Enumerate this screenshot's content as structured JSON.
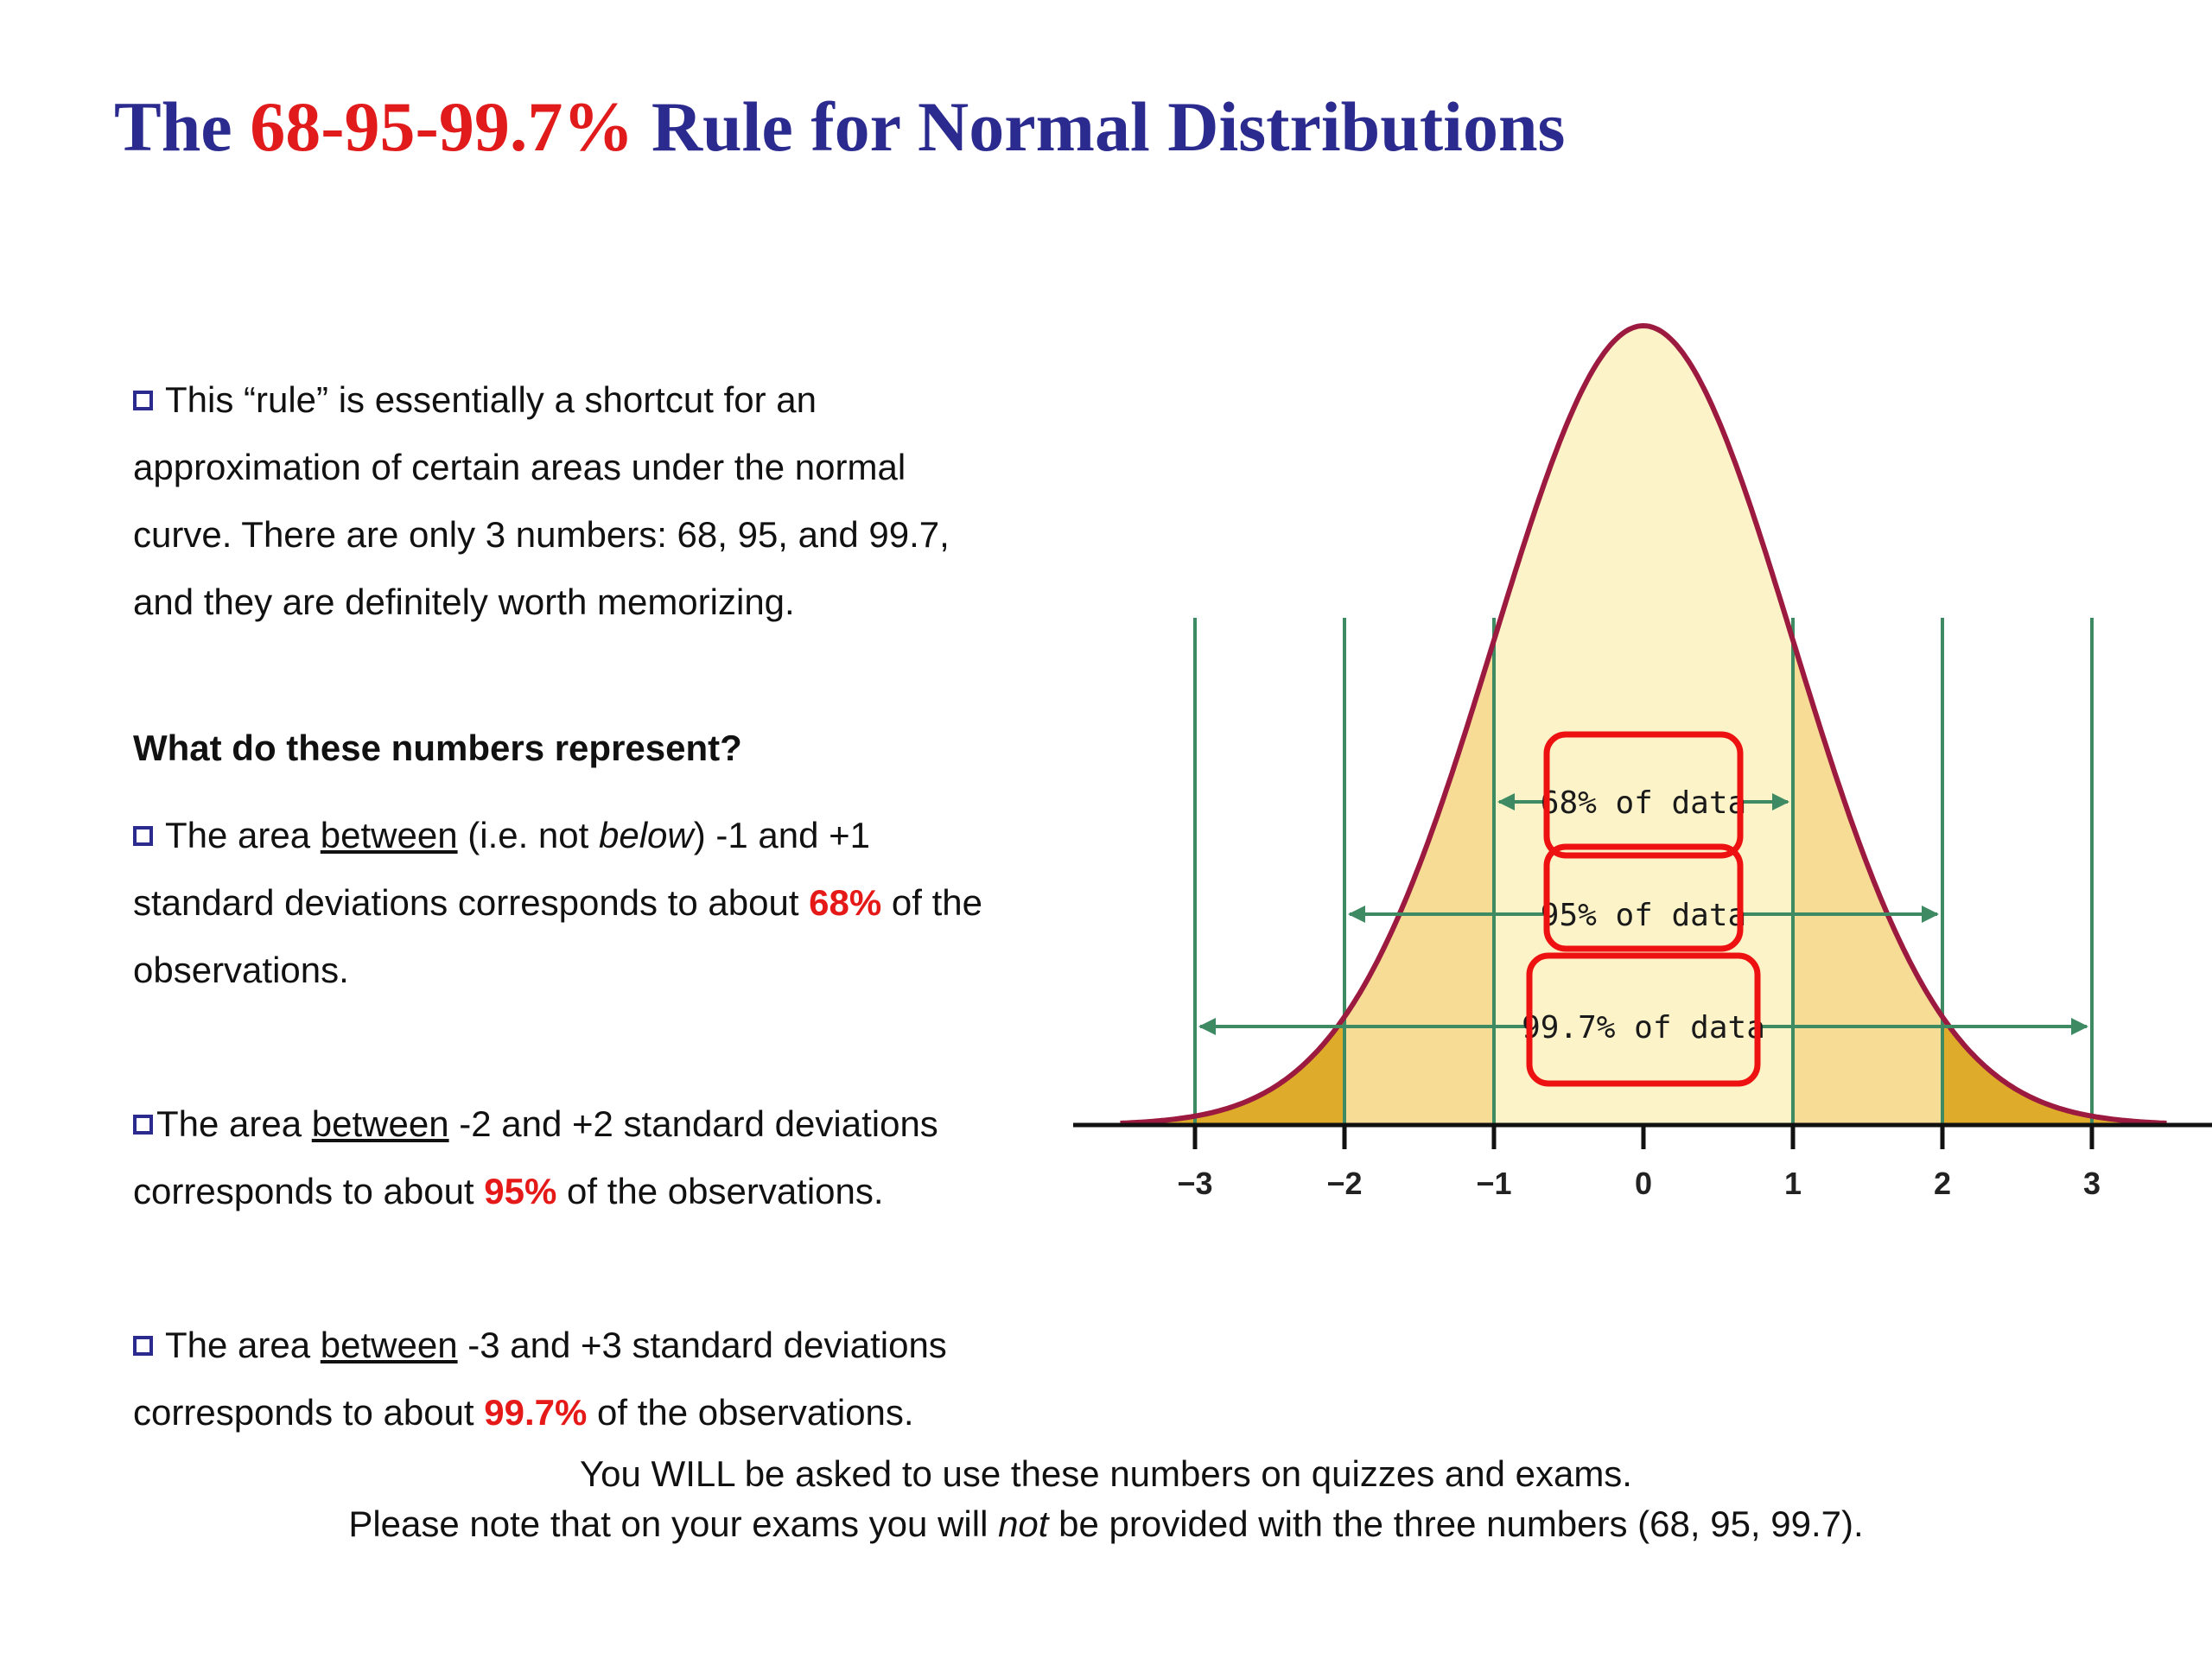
{
  "slide": {
    "title": {
      "part1": "The ",
      "highlight": "68-95-99.7%",
      "part2": " Rule for Normal Distributions"
    },
    "intro": {
      "lines": [
        "This “rule” is essentially a shortcut for an",
        "approximation of certain areas under the normal",
        "curve. There are only 3 numbers: 68, 95, and 99.7,",
        "and they are definitely worth memorizing."
      ]
    },
    "question": "What do these numbers represent?",
    "p1": {
      "pre": "The area ",
      "under": "between",
      "mid": " (i.e. not ",
      "italic": "below",
      "post": ") -1 and +1",
      "line2_pre": "standard deviations corresponds to about ",
      "value": "68%",
      "line2_post": " of the",
      "line3": "observations."
    },
    "p2": {
      "pre": "The area ",
      "under": "between",
      "post": " -2 and +2 standard deviations",
      "line2_pre": "corresponds to about ",
      "value": "95%",
      "line2_post": " of the observations."
    },
    "p3": {
      "pre": "The area ",
      "under": "between",
      "post": " -3 and +3 standard deviations",
      "line2_pre": "corresponds to about ",
      "value": "99.7%",
      "line2_post": " of the observations."
    },
    "footer": {
      "line1": "You WILL be asked to use these numbers on quizzes and exams.",
      "line2_pre": "Please note that on your exams you will ",
      "line2_italic": "not",
      "line2_post": " be provided with the three numbers (68, 95, 99.7)."
    }
  },
  "chart_data": {
    "type": "area",
    "distribution": "standard normal",
    "x_range": [
      -3.5,
      3.5
    ],
    "ticks": [
      "−3",
      "−2",
      "−1",
      "0",
      "1",
      "2",
      "3"
    ],
    "tick_values": [
      -3,
      -2,
      -1,
      0,
      1,
      2,
      3
    ],
    "intervals": [
      {
        "from": -1,
        "to": 1,
        "label": "68% of data"
      },
      {
        "from": -2,
        "to": 2,
        "label": "95% of data"
      },
      {
        "from": -3,
        "to": 3,
        "label": "99.7% of data"
      }
    ],
    "colors": {
      "curve": "#9c1a3f",
      "fill_center": "#fcf3c8",
      "fill_middle": "#f6dc95",
      "fill_tail": "#deab2a",
      "guide": "#3d8a63",
      "highlight_box": "#ee1111",
      "axis": "#111111"
    }
  }
}
